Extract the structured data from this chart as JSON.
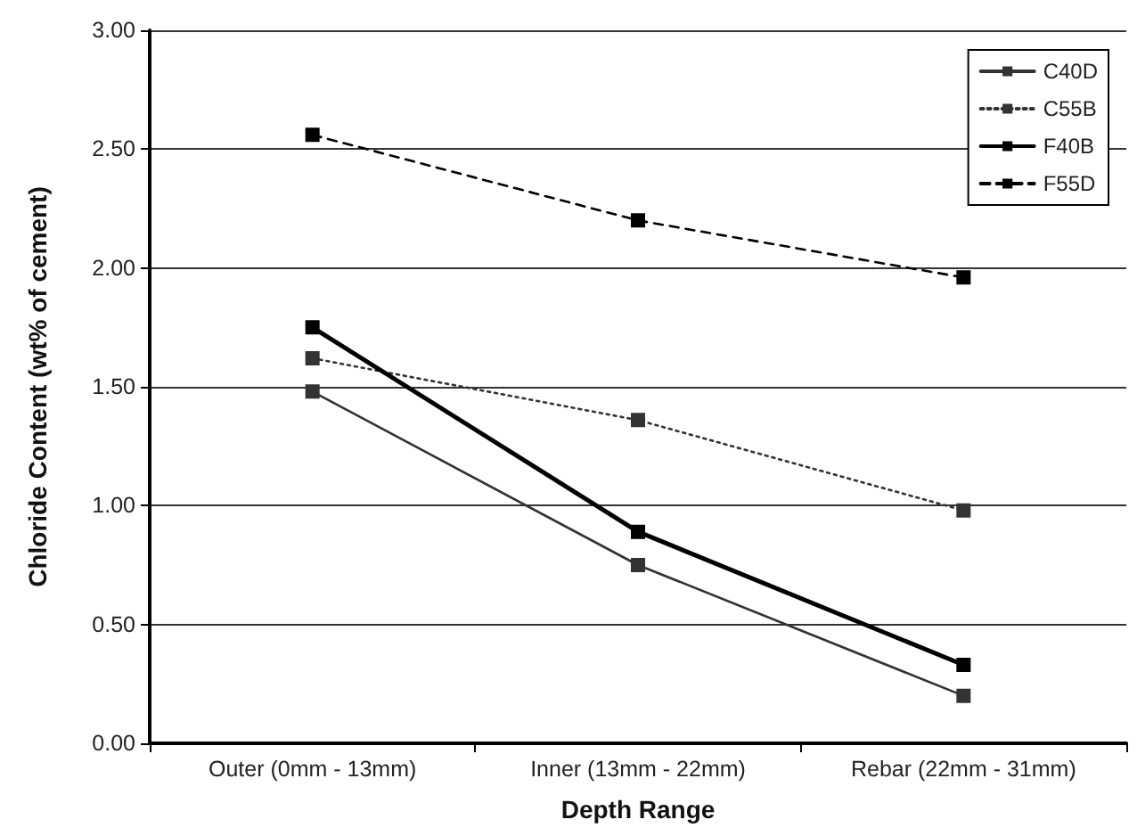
{
  "chart_data": {
    "type": "line",
    "xlabel": "Depth Range",
    "ylabel": "Chloride Content (wt% of cement)",
    "categories": [
      "Outer (0mm - 13mm)",
      "Inner (13mm - 22mm)",
      "Rebar (22mm - 31mm)"
    ],
    "series": [
      {
        "name": "C40D",
        "color": "#333333",
        "values": [
          1.48,
          0.75,
          0.2
        ],
        "line_style": "solid",
        "marker": "square"
      },
      {
        "name": "C55B",
        "color": "#333333",
        "values": [
          1.62,
          1.36,
          0.98
        ],
        "line_style": "dotted",
        "marker": "square"
      },
      {
        "name": "F40B",
        "color": "#000000",
        "values": [
          1.75,
          0.89,
          0.33
        ],
        "line_style": "solid",
        "marker": "square"
      },
      {
        "name": "F55D",
        "color": "#000000",
        "values": [
          2.56,
          2.2,
          1.96
        ],
        "line_style": "dashed",
        "marker": "square"
      }
    ],
    "ylim": [
      0,
      3
    ],
    "yticks": [
      {
        "value": 0,
        "label": "0.00"
      },
      {
        "value": 0.5,
        "label": "0.50"
      },
      {
        "value": 1,
        "label": "1.00"
      },
      {
        "value": 1.5,
        "label": "1.50"
      },
      {
        "value": 2,
        "label": "2.00"
      },
      {
        "value": 2.5,
        "label": "2.50"
      },
      {
        "value": 3,
        "label": "3.00"
      }
    ],
    "grid": "y",
    "legend": "top right"
  }
}
